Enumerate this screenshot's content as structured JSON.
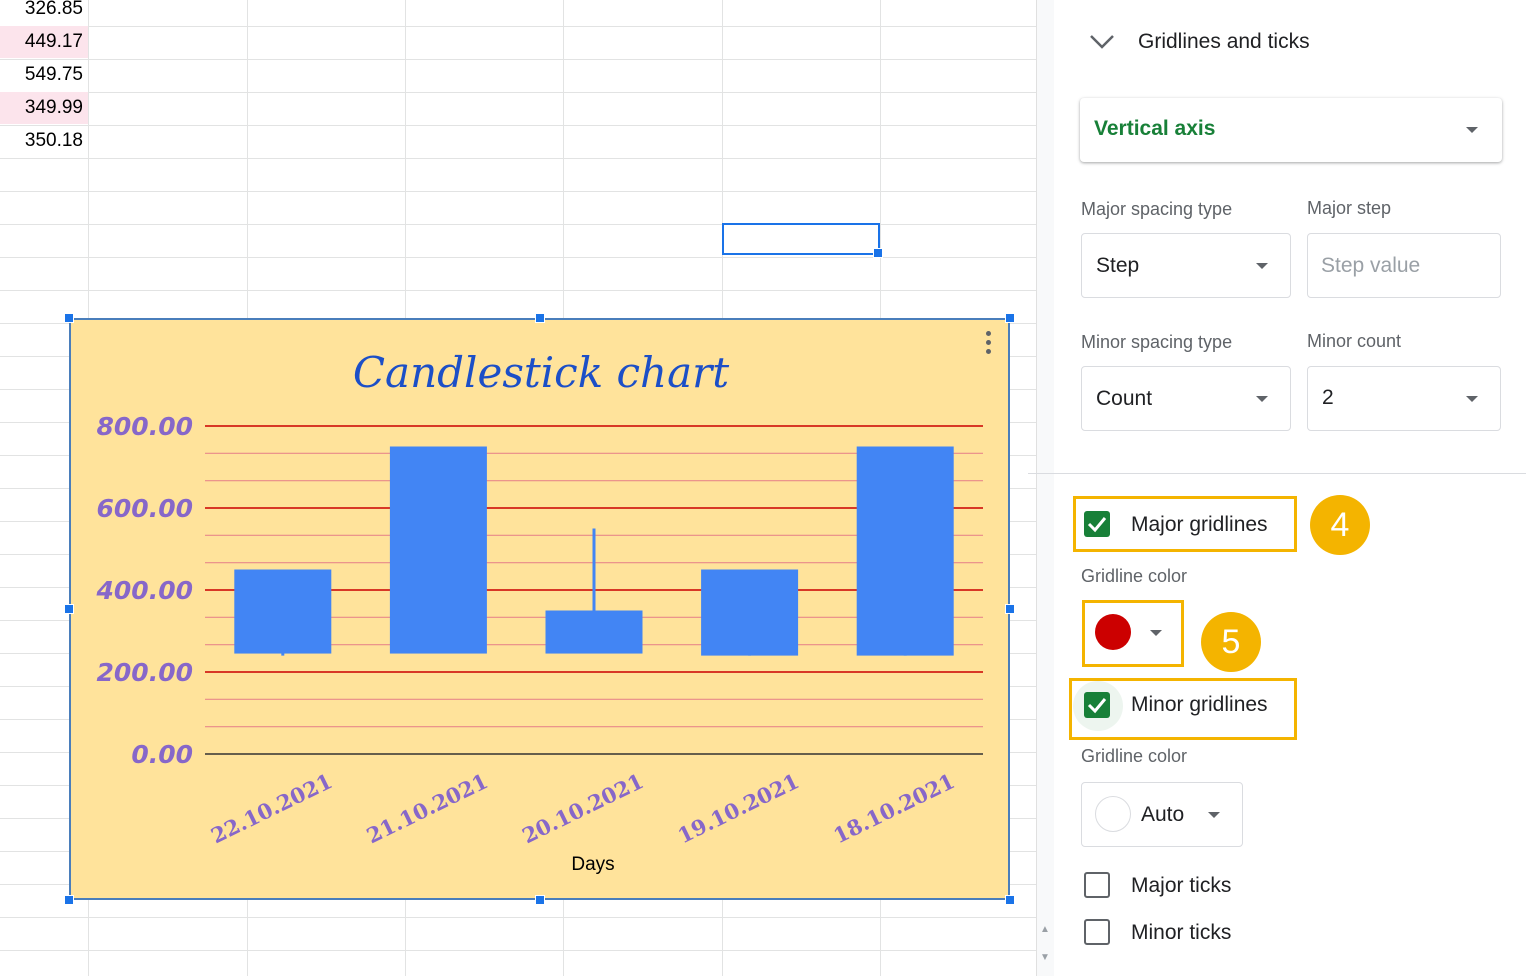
{
  "sheet": {
    "cells": [
      {
        "value": "326.85",
        "highlight": false
      },
      {
        "value": "449.17",
        "highlight": true
      },
      {
        "value": "549.75",
        "highlight": false
      },
      {
        "value": "349.99",
        "highlight": true
      },
      {
        "value": "350.18",
        "highlight": false
      }
    ],
    "highlight_color": "#fce4ec",
    "selection_color": "#1a73e8"
  },
  "chart_data": {
    "type": "candlestick",
    "title": "Candlestick chart",
    "xlabel": "Days",
    "ylabel": "",
    "categories": [
      "22.10.2021",
      "21.10.2021",
      "20.10.2021",
      "19.10.2021",
      "18.10.2021"
    ],
    "candles": [
      {
        "low": 240,
        "open": 450,
        "close": 245,
        "high": 450
      },
      {
        "low": 245,
        "open": 750,
        "close": 245,
        "high": 750
      },
      {
        "low": 245,
        "open": 350,
        "close": 245,
        "high": 550
      },
      {
        "low": 240,
        "open": 450,
        "close": 240,
        "high": 450
      },
      {
        "low": 240,
        "open": 750,
        "close": 240,
        "high": 750
      }
    ],
    "y_ticks": [
      "0.00",
      "200.00",
      "400.00",
      "600.00",
      "800.00"
    ],
    "ylim": [
      0,
      800
    ],
    "major_gridlines": true,
    "minor_gridlines": true,
    "minor_count": 2,
    "legend": "none",
    "colors": {
      "background": "#ffe39b",
      "candle": "#4285f4",
      "major_gridline": "#cc0000",
      "minor_gridline": "#e88a8a",
      "baseline": "#333333",
      "title": "#1c4fc7",
      "tick_label": "#8767c9",
      "axis_title": "#000000"
    }
  },
  "panel": {
    "section_title": "Gridlines and ticks",
    "axis_select": "Vertical axis",
    "major_spacing_type_label": "Major spacing type",
    "major_spacing_type_value": "Step",
    "major_step_label": "Major step",
    "major_step_placeholder": "Step value",
    "minor_spacing_type_label": "Minor spacing type",
    "minor_spacing_type_value": "Count",
    "minor_count_label": "Minor count",
    "minor_count_value": "2",
    "major_gridlines_label": "Major gridlines",
    "major_gridlines_checked": true,
    "gridline_color_label_1": "Gridline color",
    "major_gridline_color": "#cc0000",
    "minor_gridlines_label": "Minor gridlines",
    "minor_gridlines_checked": true,
    "gridline_color_label_2": "Gridline color",
    "minor_gridline_color_value": "Auto",
    "major_ticks_label": "Major ticks",
    "major_ticks_checked": false,
    "minor_ticks_label": "Minor ticks",
    "minor_ticks_checked": false,
    "accent_color": "#188038",
    "annotation_color": "#f4b400"
  },
  "annotations": {
    "step4": "4",
    "step5": "5"
  }
}
